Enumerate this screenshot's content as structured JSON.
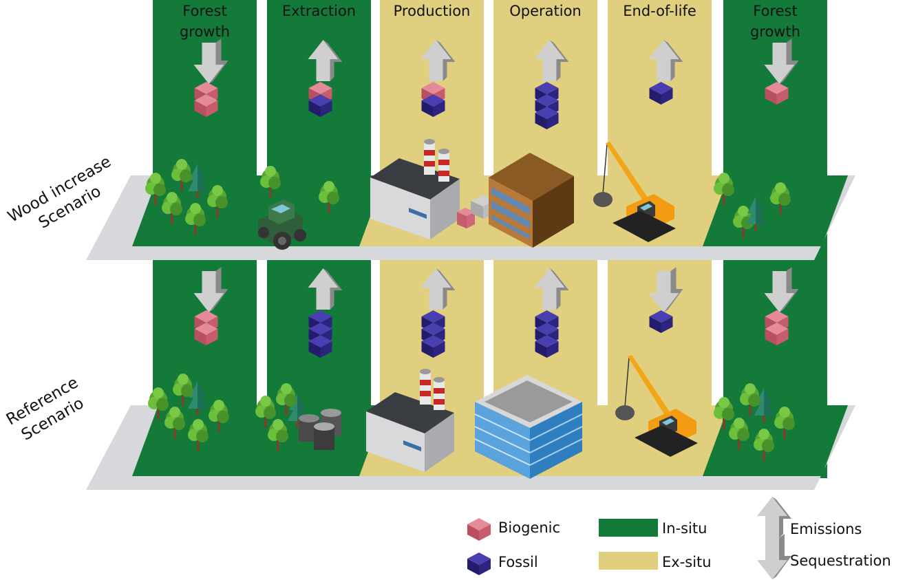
{
  "stages": [
    {
      "title_lines": [
        "Forest",
        "growth"
      ],
      "zone": "in-situ"
    },
    {
      "title_lines": [
        "Extraction"
      ],
      "zone": "in-situ"
    },
    {
      "title_lines": [
        "Production"
      ],
      "zone": "ex-situ"
    },
    {
      "title_lines": [
        "Operation"
      ],
      "zone": "ex-situ"
    },
    {
      "title_lines": [
        "End-of-life"
      ],
      "zone": "ex-situ"
    },
    {
      "title_lines": [
        "Forest",
        "growth"
      ],
      "zone": "in-situ"
    }
  ],
  "scenarios": [
    {
      "label_lines": [
        "Wood increase",
        "Scenario"
      ],
      "flows": [
        {
          "arrow": "sequestration",
          "cubes": [
            "biogenic",
            "biogenic"
          ]
        },
        {
          "arrow": "emissions",
          "cubes": [
            "biogenic",
            "fossil"
          ]
        },
        {
          "arrow": "emissions",
          "cubes": [
            "biogenic",
            "fossil"
          ]
        },
        {
          "arrow": "emissions",
          "cubes": [
            "fossil",
            "fossil",
            "fossil"
          ]
        },
        {
          "arrow": "emissions",
          "cubes": [
            "fossil"
          ]
        },
        {
          "arrow": "sequestration",
          "cubes": [
            "biogenic"
          ]
        }
      ]
    },
    {
      "label_lines": [
        "Reference",
        "Scenario"
      ],
      "flows": [
        {
          "arrow": "sequestration",
          "cubes": [
            "biogenic",
            "biogenic"
          ]
        },
        {
          "arrow": "emissions",
          "cubes": [
            "fossil",
            "fossil",
            "fossil"
          ]
        },
        {
          "arrow": "emissions",
          "cubes": [
            "fossil",
            "fossil",
            "fossil"
          ]
        },
        {
          "arrow": "emissions",
          "cubes": [
            "fossil",
            "fossil",
            "fossil"
          ]
        },
        {
          "arrow": "sequestration",
          "cubes": [
            "fossil"
          ]
        },
        {
          "arrow": "sequestration",
          "cubes": [
            "biogenic",
            "biogenic"
          ]
        }
      ]
    }
  ],
  "legend": {
    "biogenic": "Biogenic",
    "fossil": "Fossil",
    "in_situ": "In-situ",
    "ex_situ": "Ex-situ",
    "emissions": "Emissions",
    "sequestration": "Sequestration"
  },
  "colors": {
    "in_situ": "#137a3a",
    "ex_situ": "#e0cf7f",
    "biogenic": "#d0667a",
    "fossil": "#2f2685",
    "platform": "#d6d8dc",
    "arrow": "#a8a8a8"
  }
}
